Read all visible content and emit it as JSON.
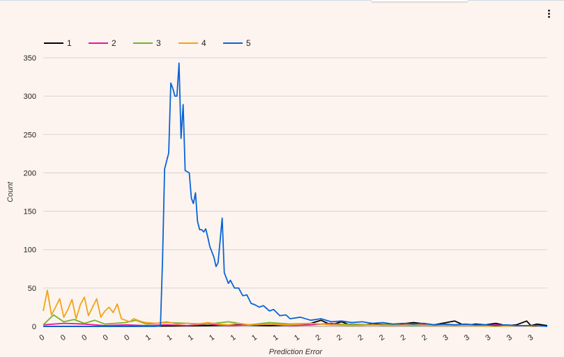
{
  "icons": {
    "menu": "more-vert-icon"
  },
  "chart_data": {
    "type": "line",
    "title": "",
    "xlabel": "Prediction Error",
    "ylabel": "Count",
    "ylim": [
      0,
      350
    ],
    "yticks": [
      0,
      50,
      100,
      150,
      200,
      250,
      300,
      350
    ],
    "xtick_labels": [
      "0",
      "0",
      "0",
      "0",
      "0",
      "1",
      "1",
      "1",
      "1",
      "1",
      "1",
      "1",
      "1",
      "2",
      "2",
      "2",
      "2",
      "2",
      "2",
      "3",
      "3",
      "3",
      "3",
      "3"
    ],
    "grid": true,
    "legend_position": "top-left",
    "x_range": [
      0,
      245
    ],
    "series": [
      {
        "name": "1",
        "color": "#000000",
        "values": [
          [
            0,
            0
          ],
          [
            40,
            0
          ],
          [
            80,
            1
          ],
          [
            95,
            2
          ],
          [
            110,
            1
          ],
          [
            125,
            2
          ],
          [
            130,
            4
          ],
          [
            135,
            8
          ],
          [
            140,
            2
          ],
          [
            145,
            6
          ],
          [
            150,
            1
          ],
          [
            160,
            3
          ],
          [
            170,
            2
          ],
          [
            180,
            5
          ],
          [
            190,
            2
          ],
          [
            200,
            7
          ],
          [
            205,
            1
          ],
          [
            210,
            3
          ],
          [
            215,
            2
          ],
          [
            220,
            4
          ],
          [
            225,
            1
          ],
          [
            230,
            2
          ],
          [
            235,
            7
          ],
          [
            237,
            1
          ],
          [
            240,
            3
          ],
          [
            245,
            1
          ]
        ]
      },
      {
        "name": "2",
        "color": "#e7149c",
        "values": [
          [
            0,
            2
          ],
          [
            10,
            4
          ],
          [
            20,
            3
          ],
          [
            30,
            1
          ],
          [
            40,
            2
          ],
          [
            50,
            1
          ],
          [
            60,
            2
          ],
          [
            70,
            1
          ],
          [
            80,
            3
          ],
          [
            90,
            1
          ],
          [
            100,
            2
          ],
          [
            110,
            3
          ],
          [
            120,
            1
          ],
          [
            130,
            2
          ],
          [
            140,
            4
          ],
          [
            150,
            1
          ],
          [
            160,
            2
          ],
          [
            170,
            1
          ],
          [
            180,
            3
          ],
          [
            190,
            1
          ],
          [
            200,
            2
          ],
          [
            210,
            1
          ],
          [
            220,
            2
          ],
          [
            230,
            1
          ],
          [
            240,
            0
          ]
        ]
      },
      {
        "name": "3",
        "color": "#74b22a",
        "values": [
          [
            0,
            2
          ],
          [
            5,
            15
          ],
          [
            10,
            6
          ],
          [
            15,
            9
          ],
          [
            20,
            4
          ],
          [
            25,
            8
          ],
          [
            30,
            3
          ],
          [
            40,
            5
          ],
          [
            45,
            8
          ],
          [
            50,
            3
          ],
          [
            60,
            5
          ],
          [
            70,
            4
          ],
          [
            80,
            3
          ],
          [
            90,
            6
          ],
          [
            100,
            2
          ],
          [
            110,
            5
          ],
          [
            120,
            3
          ],
          [
            130,
            4
          ],
          [
            140,
            2
          ],
          [
            150,
            3
          ],
          [
            160,
            2
          ],
          [
            170,
            2
          ],
          [
            180,
            1
          ],
          [
            190,
            2
          ],
          [
            200,
            1
          ],
          [
            210,
            1
          ],
          [
            220,
            0
          ],
          [
            230,
            1
          ],
          [
            240,
            0
          ]
        ]
      },
      {
        "name": "4",
        "color": "#f2a31a",
        "values": [
          [
            0,
            20
          ],
          [
            2,
            47
          ],
          [
            4,
            15
          ],
          [
            6,
            25
          ],
          [
            8,
            36
          ],
          [
            10,
            12
          ],
          [
            12,
            22
          ],
          [
            14,
            35
          ],
          [
            16,
            10
          ],
          [
            18,
            28
          ],
          [
            20,
            38
          ],
          [
            22,
            14
          ],
          [
            24,
            25
          ],
          [
            26,
            36
          ],
          [
            28,
            12
          ],
          [
            30,
            20
          ],
          [
            32,
            25
          ],
          [
            34,
            18
          ],
          [
            36,
            29
          ],
          [
            38,
            10
          ],
          [
            40,
            8
          ],
          [
            42,
            6
          ],
          [
            44,
            10
          ],
          [
            46,
            8
          ],
          [
            48,
            6
          ],
          [
            50,
            5
          ],
          [
            55,
            4
          ],
          [
            60,
            6
          ],
          [
            65,
            3
          ],
          [
            70,
            4
          ],
          [
            75,
            3
          ],
          [
            80,
            5
          ],
          [
            85,
            3
          ],
          [
            90,
            2
          ],
          [
            95,
            4
          ],
          [
            100,
            2
          ],
          [
            110,
            3
          ],
          [
            120,
            2
          ],
          [
            130,
            4
          ],
          [
            140,
            2
          ],
          [
            150,
            1
          ],
          [
            160,
            2
          ],
          [
            170,
            1
          ],
          [
            180,
            2
          ],
          [
            190,
            1
          ],
          [
            200,
            1
          ],
          [
            210,
            1
          ],
          [
            220,
            0
          ],
          [
            230,
            1
          ],
          [
            240,
            0
          ]
        ]
      },
      {
        "name": "5",
        "color": "#0a63d6",
        "values": [
          [
            0,
            0
          ],
          [
            55,
            0
          ],
          [
            57,
            1
          ],
          [
            58,
            88
          ],
          [
            59,
            205
          ],
          [
            61,
            226
          ],
          [
            62,
            317
          ],
          [
            63,
            310
          ],
          [
            64,
            300
          ],
          [
            65,
            300
          ],
          [
            66,
            343
          ],
          [
            67,
            245
          ],
          [
            68,
            289
          ],
          [
            69,
            203
          ],
          [
            71,
            200
          ],
          [
            72,
            167
          ],
          [
            73,
            160
          ],
          [
            74,
            174
          ],
          [
            75,
            137
          ],
          [
            76,
            126
          ],
          [
            77,
            126
          ],
          [
            78,
            123
          ],
          [
            79,
            127
          ],
          [
            80,
            116
          ],
          [
            81,
            104
          ],
          [
            83,
            90
          ],
          [
            84,
            78
          ],
          [
            85,
            83
          ],
          [
            87,
            141
          ],
          [
            88,
            70
          ],
          [
            90,
            56
          ],
          [
            91,
            60
          ],
          [
            93,
            50
          ],
          [
            95,
            50
          ],
          [
            97,
            40
          ],
          [
            99,
            41
          ],
          [
            101,
            30
          ],
          [
            103,
            28
          ],
          [
            105,
            25
          ],
          [
            107,
            27
          ],
          [
            110,
            20
          ],
          [
            112,
            22
          ],
          [
            115,
            14
          ],
          [
            118,
            15
          ],
          [
            120,
            10
          ],
          [
            125,
            12
          ],
          [
            130,
            8
          ],
          [
            135,
            10
          ],
          [
            140,
            6
          ],
          [
            145,
            7
          ],
          [
            150,
            5
          ],
          [
            155,
            6
          ],
          [
            160,
            4
          ],
          [
            165,
            5
          ],
          [
            170,
            3
          ],
          [
            175,
            4
          ],
          [
            180,
            3
          ],
          [
            185,
            4
          ],
          [
            190,
            2
          ],
          [
            195,
            3
          ],
          [
            200,
            2
          ],
          [
            205,
            3
          ],
          [
            210,
            2
          ],
          [
            215,
            2
          ],
          [
            220,
            1
          ],
          [
            225,
            2
          ],
          [
            230,
            1
          ],
          [
            235,
            1
          ],
          [
            240,
            1
          ],
          [
            245,
            0
          ]
        ]
      }
    ]
  }
}
